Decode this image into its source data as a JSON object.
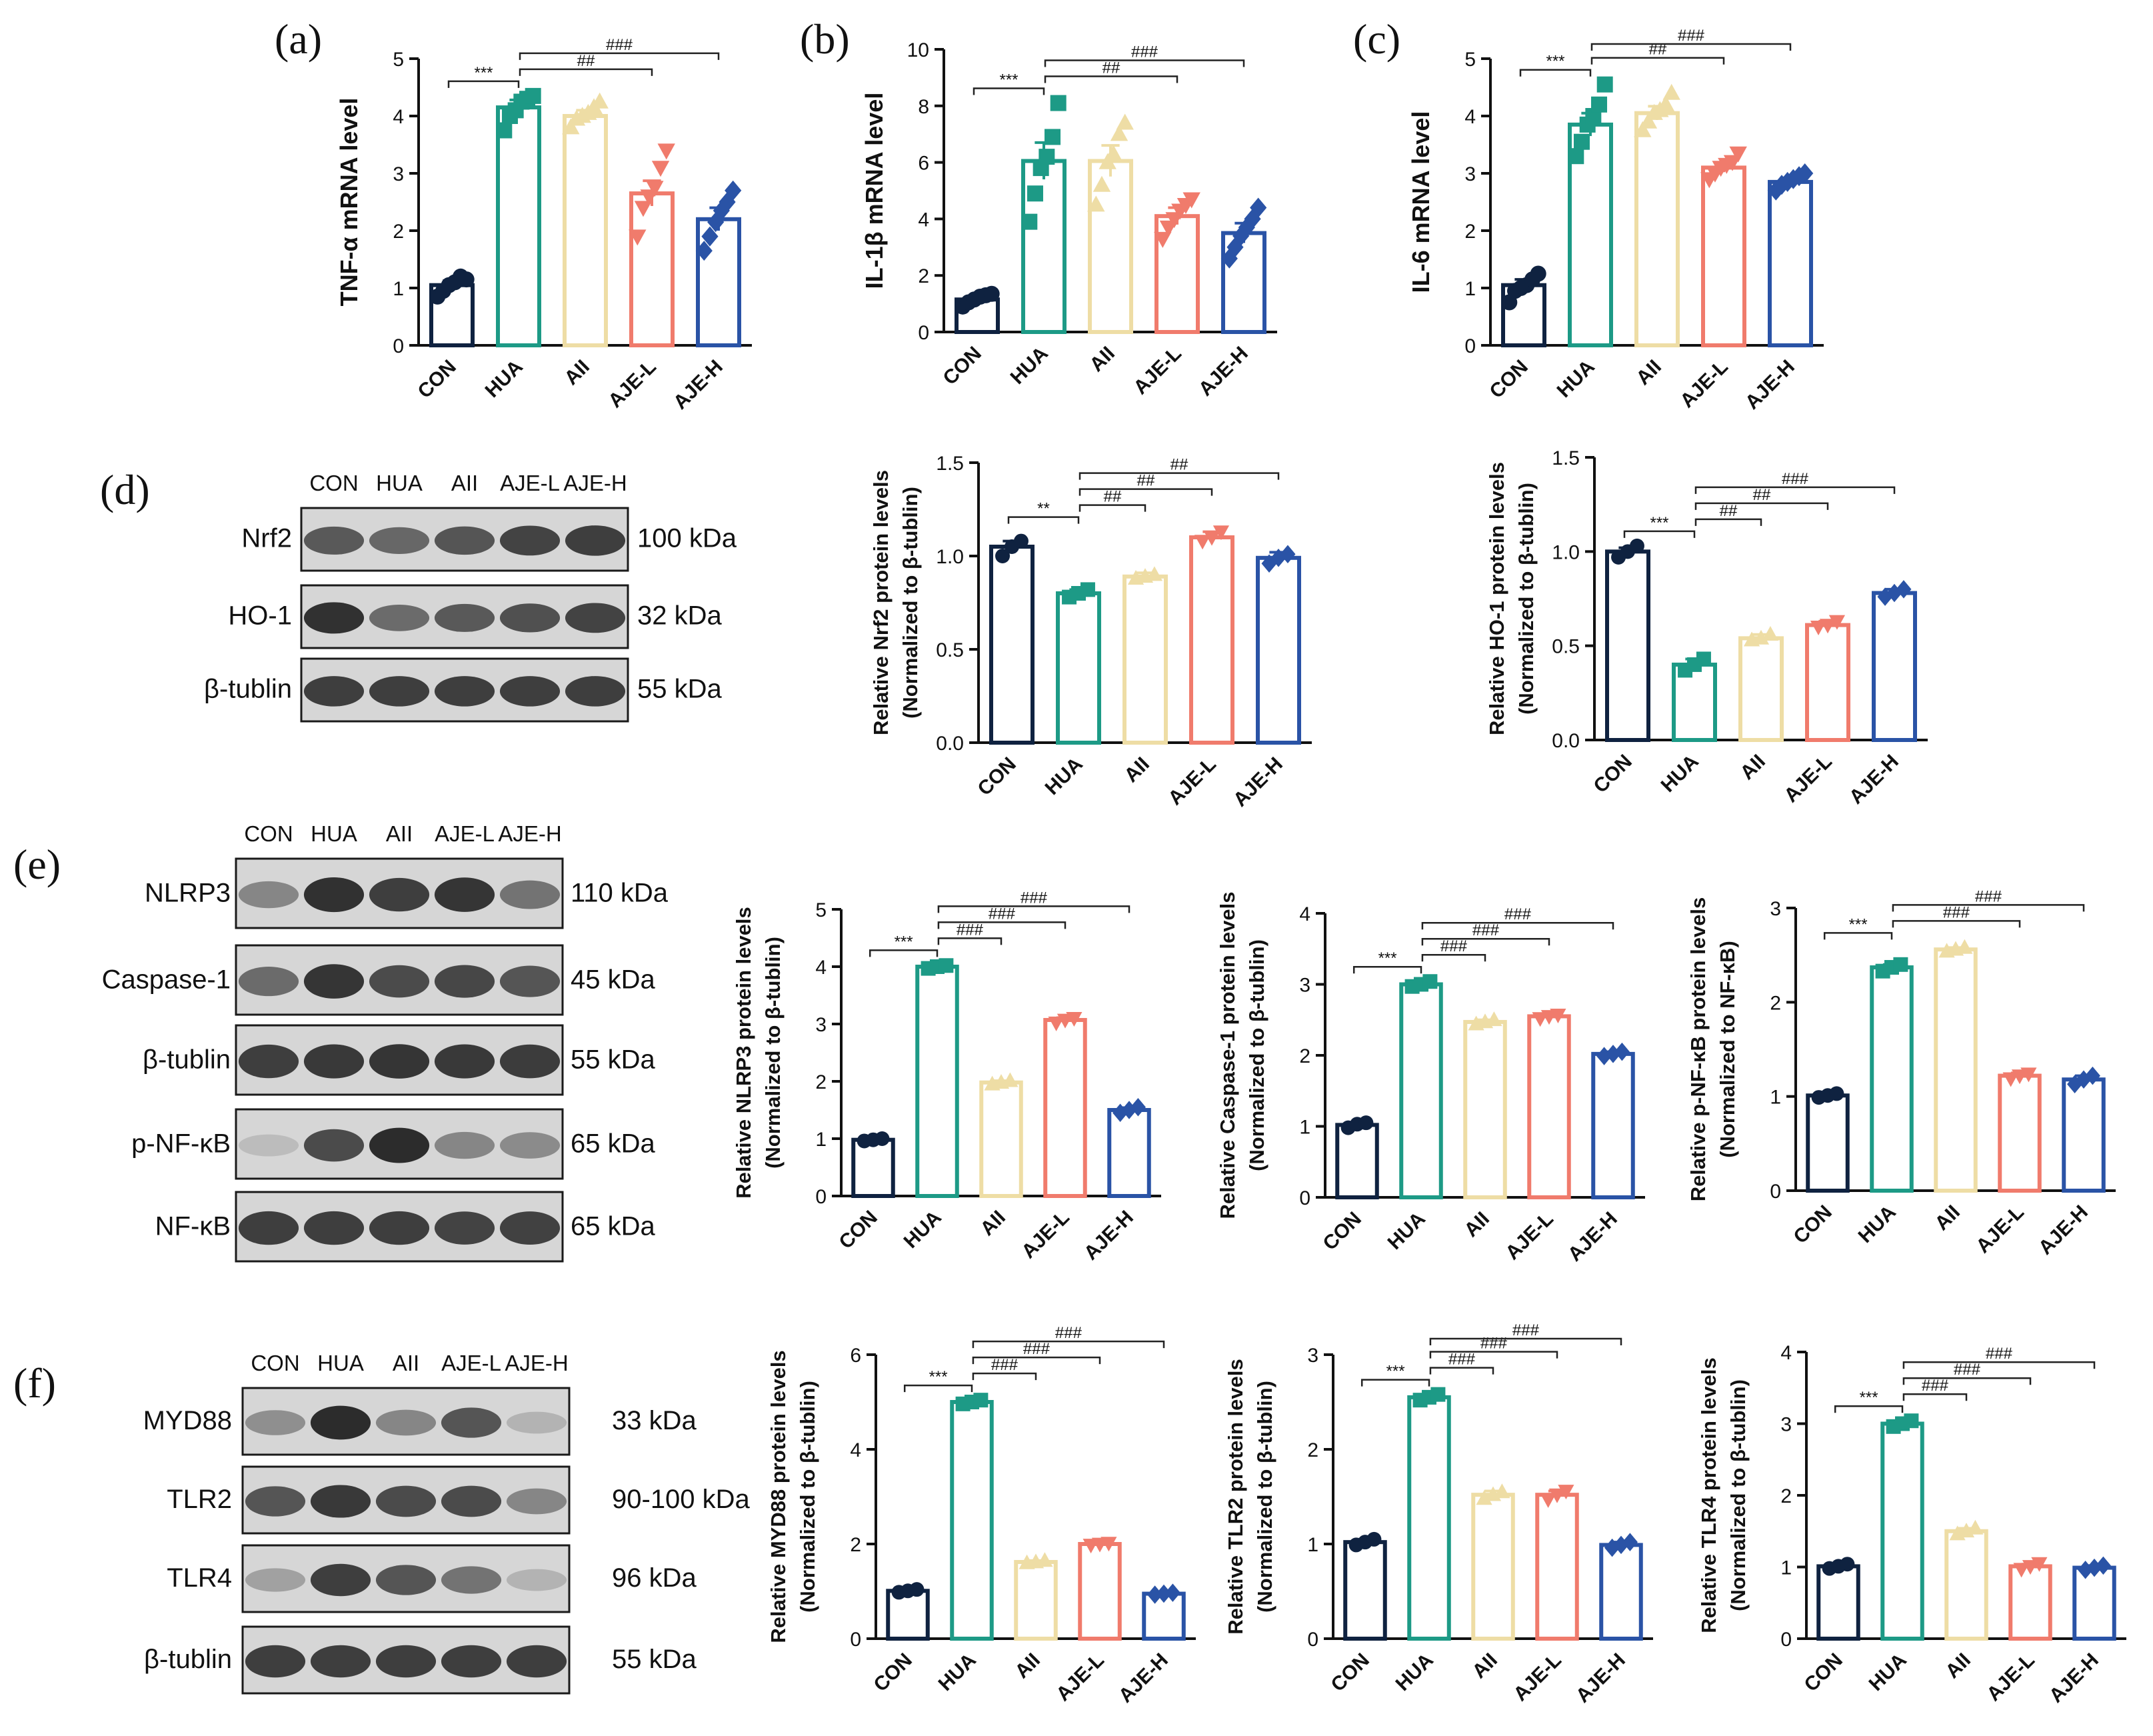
{
  "figure": {
    "groups": [
      "CON",
      "HUA",
      "AII",
      "AJE-L",
      "AJE-H"
    ],
    "colors": {
      "CON": "#0f2240",
      "HUA": "#1d9a86",
      "AII": "#eedda5",
      "AJE-L": "#f07b6c",
      "AJE-H": "#2a53a6"
    },
    "markers": {
      "CON": "circle",
      "HUA": "square",
      "AII": "triangle-up",
      "AJE-L": "triangle-down",
      "AJE-H": "diamond"
    }
  },
  "panels": {
    "a": "(a)",
    "b": "(b)",
    "c": "(c)",
    "d": "(d)",
    "e": "(e)",
    "f": "(f)"
  },
  "western_blots": [
    {
      "panel": "d",
      "lane_labels": [
        "CON",
        "HUA",
        "AII",
        "AJE-L",
        "AJE-H"
      ],
      "rows": [
        {
          "protein": "Nrf2",
          "size": "100 kDa",
          "intensity": [
            0.7,
            0.62,
            0.72,
            0.82,
            0.85
          ]
        },
        {
          "protein": "HO-1",
          "size": "32 kDa",
          "intensity": [
            0.92,
            0.6,
            0.7,
            0.75,
            0.82
          ]
        },
        {
          "protein": "β-tublin",
          "size": "55 kDa",
          "intensity": [
            0.85,
            0.85,
            0.85,
            0.85,
            0.85
          ]
        }
      ]
    },
    {
      "panel": "e",
      "lane_labels": [
        "CON",
        "HUA",
        "AII",
        "AJE-L",
        "AJE-H"
      ],
      "rows": [
        {
          "protein": "NLRP3",
          "size": "110 kDa",
          "intensity": [
            0.45,
            0.92,
            0.85,
            0.9,
            0.55
          ]
        },
        {
          "protein": "Caspase-1",
          "size": "45 kDa",
          "intensity": [
            0.6,
            0.9,
            0.78,
            0.8,
            0.72
          ]
        },
        {
          "protein": "β-tublin",
          "size": "55 kDa",
          "intensity": [
            0.85,
            0.88,
            0.9,
            0.88,
            0.86
          ]
        },
        {
          "protein": "p-NF-κB",
          "size": "65 kDa",
          "intensity": [
            0.15,
            0.78,
            0.95,
            0.45,
            0.42
          ]
        },
        {
          "protein": "NF-κB",
          "size": "65 kDa",
          "intensity": [
            0.85,
            0.85,
            0.85,
            0.82,
            0.83
          ]
        }
      ]
    },
    {
      "panel": "f",
      "lane_labels": [
        "CON",
        "HUA",
        "AII",
        "AJE-L",
        "AJE-H"
      ],
      "rows": [
        {
          "protein": "MYD88",
          "size": "33 kDa",
          "intensity": [
            0.4,
            0.95,
            0.45,
            0.72,
            0.2
          ]
        },
        {
          "protein": "TLR2",
          "size": "90-100 kDa",
          "intensity": [
            0.72,
            0.88,
            0.78,
            0.78,
            0.45
          ]
        },
        {
          "protein": "TLR4",
          "size": "96 kDa",
          "intensity": [
            0.3,
            0.85,
            0.72,
            0.55,
            0.2
          ]
        },
        {
          "protein": "β-tublin",
          "size": "55 kDa",
          "intensity": [
            0.85,
            0.85,
            0.85,
            0.85,
            0.85
          ]
        }
      ]
    }
  ],
  "chart_data": [
    {
      "id": "a",
      "type": "bar",
      "ylabel": [
        "TNF-α mRNA level"
      ],
      "categories": [
        "CON",
        "HUA",
        "AII",
        "AJE-L",
        "AJE-H"
      ],
      "values": [
        1.05,
        4.15,
        4.0,
        2.65,
        2.2
      ],
      "errors": [
        0.08,
        0.13,
        0.1,
        0.22,
        0.2
      ],
      "points": [
        [
          0.85,
          0.95,
          1.05,
          1.1,
          1.2,
          1.15
        ],
        [
          3.75,
          4.0,
          4.1,
          4.25,
          4.3,
          4.35
        ],
        [
          3.8,
          3.95,
          4.0,
          4.05,
          4.15,
          4.25
        ],
        [
          1.9,
          2.4,
          2.6,
          2.75,
          3.1,
          3.4
        ],
        [
          1.65,
          1.9,
          2.15,
          2.35,
          2.5,
          2.7
        ]
      ],
      "ylim": [
        0,
        5
      ],
      "yticks": [
        0,
        1,
        2,
        3,
        4,
        5
      ],
      "brackets": [
        {
          "from": 0,
          "to": 1,
          "label": "***"
        },
        {
          "from": 1,
          "to": 3,
          "label": "##"
        },
        {
          "from": 1,
          "to": 4,
          "label": "###"
        }
      ]
    },
    {
      "id": "b",
      "type": "bar",
      "ylabel": [
        "IL-1β mRNA level"
      ],
      "categories": [
        "CON",
        "HUA",
        "AII",
        "AJE-L",
        "AJE-H"
      ],
      "values": [
        1.15,
        6.05,
        6.05,
        4.1,
        3.5
      ],
      "errors": [
        0.12,
        0.65,
        0.55,
        0.3,
        0.35
      ],
      "points": [
        [
          0.9,
          1.05,
          1.15,
          1.25,
          1.3,
          1.35
        ],
        [
          3.9,
          4.9,
          5.8,
          6.2,
          6.9,
          8.1
        ],
        [
          4.5,
          5.2,
          6.0,
          6.3,
          7.0,
          7.4
        ],
        [
          3.3,
          3.7,
          4.0,
          4.3,
          4.5,
          4.7
        ],
        [
          2.6,
          3.0,
          3.4,
          3.7,
          4.0,
          4.4
        ]
      ],
      "ylim": [
        0,
        10
      ],
      "yticks": [
        0,
        2,
        4,
        6,
        8,
        10
      ],
      "brackets": [
        {
          "from": 0,
          "to": 1,
          "label": "***"
        },
        {
          "from": 1,
          "to": 3,
          "label": "##"
        },
        {
          "from": 1,
          "to": 4,
          "label": "###"
        }
      ]
    },
    {
      "id": "c",
      "type": "bar",
      "ylabel": [
        "IL-6 mRNA level"
      ],
      "categories": [
        "CON",
        "HUA",
        "AII",
        "AJE-L",
        "AJE-H"
      ],
      "values": [
        1.05,
        3.85,
        4.05,
        3.1,
        2.85
      ],
      "errors": [
        0.1,
        0.2,
        0.12,
        0.08,
        0.07
      ],
      "points": [
        [
          0.75,
          0.95,
          1.0,
          1.05,
          1.15,
          1.25
        ],
        [
          3.3,
          3.55,
          3.85,
          4.0,
          4.2,
          4.55
        ],
        [
          3.75,
          3.9,
          4.05,
          4.1,
          4.2,
          4.4
        ],
        [
          2.9,
          3.0,
          3.1,
          3.15,
          3.2,
          3.35
        ],
        [
          2.7,
          2.8,
          2.85,
          2.9,
          2.95,
          3.0
        ]
      ],
      "ylim": [
        0,
        5
      ],
      "yticks": [
        0,
        1,
        2,
        3,
        4,
        5
      ],
      "brackets": [
        {
          "from": 0,
          "to": 1,
          "label": "***"
        },
        {
          "from": 1,
          "to": 3,
          "label": "##"
        },
        {
          "from": 1,
          "to": 4,
          "label": "###"
        }
      ]
    },
    {
      "id": "d1",
      "type": "bar",
      "ylabel": [
        "Relative Nrf2 protein levels",
        "(Normalized to β-tublin)"
      ],
      "categories": [
        "CON",
        "HUA",
        "AII",
        "AJE-L",
        "AJE-H"
      ],
      "values": [
        1.05,
        0.8,
        0.89,
        1.1,
        0.99
      ],
      "errors": [
        0.03,
        0.02,
        0.02,
        0.03,
        0.03
      ],
      "points": [
        [
          1.0,
          1.05,
          1.08
        ],
        [
          0.78,
          0.8,
          0.82
        ],
        [
          0.88,
          0.89,
          0.9
        ],
        [
          1.08,
          1.1,
          1.13
        ],
        [
          0.96,
          0.99,
          1.01
        ]
      ],
      "ylim": [
        0,
        1.5
      ],
      "yticks": [
        0.0,
        0.5,
        1.0,
        1.5
      ],
      "brackets": [
        {
          "from": 0,
          "to": 1,
          "label": "**"
        },
        {
          "from": 1,
          "to": 2,
          "label": "##"
        },
        {
          "from": 1,
          "to": 3,
          "label": "##"
        },
        {
          "from": 1,
          "to": 4,
          "label": "##"
        }
      ]
    },
    {
      "id": "d2",
      "type": "bar",
      "ylabel": [
        "Relative HO-1 protein levels",
        "(Normalized to β-tublin)"
      ],
      "categories": [
        "CON",
        "HUA",
        "AII",
        "AJE-L",
        "AJE-H"
      ],
      "values": [
        1.0,
        0.4,
        0.54,
        0.61,
        0.78
      ],
      "errors": [
        0.02,
        0.03,
        0.02,
        0.02,
        0.02
      ],
      "points": [
        [
          0.97,
          1.0,
          1.03
        ],
        [
          0.37,
          0.4,
          0.43
        ],
        [
          0.53,
          0.54,
          0.56
        ],
        [
          0.6,
          0.61,
          0.63
        ],
        [
          0.76,
          0.78,
          0.8
        ]
      ],
      "ylim": [
        0,
        1.5
      ],
      "yticks": [
        0.0,
        0.5,
        1.0,
        1.5
      ],
      "brackets": [
        {
          "from": 0,
          "to": 1,
          "label": "***"
        },
        {
          "from": 1,
          "to": 2,
          "label": "##"
        },
        {
          "from": 1,
          "to": 3,
          "label": "##"
        },
        {
          "from": 1,
          "to": 4,
          "label": "###"
        }
      ]
    },
    {
      "id": "e1",
      "type": "bar",
      "ylabel": [
        "Relative NLRP3 protein levels",
        "(Normalized to β-tublin)"
      ],
      "categories": [
        "CON",
        "HUA",
        "AII",
        "AJE-L",
        "AJE-H"
      ],
      "values": [
        0.98,
        4.0,
        1.98,
        3.07,
        1.5
      ],
      "errors": [
        0.03,
        0.03,
        0.03,
        0.04,
        0.04
      ],
      "points": [
        [
          0.96,
          0.98,
          1.0
        ],
        [
          3.97,
          4.0,
          4.02
        ],
        [
          1.95,
          1.98,
          2.01
        ],
        [
          3.02,
          3.07,
          3.1
        ],
        [
          1.45,
          1.5,
          1.55
        ]
      ],
      "ylim": [
        0,
        5
      ],
      "yticks": [
        0,
        1,
        2,
        3,
        4,
        5
      ],
      "brackets": [
        {
          "from": 0,
          "to": 1,
          "label": "***"
        },
        {
          "from": 1,
          "to": 2,
          "label": "###"
        },
        {
          "from": 1,
          "to": 3,
          "label": "###"
        },
        {
          "from": 1,
          "to": 4,
          "label": "###"
        }
      ]
    },
    {
      "id": "e2",
      "type": "bar",
      "ylabel": [
        "Relative Caspase-1 protein levels",
        "(Normalized to β-tublin)"
      ],
      "categories": [
        "CON",
        "HUA",
        "AII",
        "AJE-L",
        "AJE-H"
      ],
      "values": [
        1.02,
        3.0,
        2.47,
        2.55,
        2.02
      ],
      "errors": [
        0.03,
        0.03,
        0.03,
        0.03,
        0.03
      ],
      "points": [
        [
          0.98,
          1.03,
          1.05
        ],
        [
          2.97,
          3.0,
          3.04
        ],
        [
          2.44,
          2.47,
          2.5
        ],
        [
          2.52,
          2.55,
          2.57
        ],
        [
          1.99,
          2.02,
          2.05
        ]
      ],
      "ylim": [
        0,
        4
      ],
      "yticks": [
        0,
        1,
        2,
        3,
        4
      ],
      "brackets": [
        {
          "from": 0,
          "to": 1,
          "label": "***"
        },
        {
          "from": 1,
          "to": 2,
          "label": "###"
        },
        {
          "from": 1,
          "to": 3,
          "label": "###"
        },
        {
          "from": 1,
          "to": 4,
          "label": "###"
        }
      ]
    },
    {
      "id": "e3",
      "type": "bar",
      "ylabel": [
        "Relative p-NF-κB protein levels",
        "(Normalized to NF-κB)"
      ],
      "categories": [
        "CON",
        "HUA",
        "AII",
        "AJE-L",
        "AJE-H"
      ],
      "values": [
        1.01,
        2.37,
        2.56,
        1.22,
        1.18
      ],
      "errors": [
        0.02,
        0.03,
        0.02,
        0.03,
        0.04
      ],
      "points": [
        [
          0.99,
          1.01,
          1.03
        ],
        [
          2.33,
          2.37,
          2.4
        ],
        [
          2.54,
          2.56,
          2.58
        ],
        [
          1.19,
          1.22,
          1.24
        ],
        [
          1.13,
          1.18,
          1.22
        ]
      ],
      "ylim": [
        0,
        3
      ],
      "yticks": [
        0,
        1,
        2,
        3
      ],
      "brackets": [
        {
          "from": 0,
          "to": 1,
          "label": "***"
        },
        {
          "from": 1,
          "to": 3,
          "label": "###"
        },
        {
          "from": 1,
          "to": 4,
          "label": "###"
        }
      ]
    },
    {
      "id": "f1",
      "type": "bar",
      "ylabel": [
        "Relative MYD88 protein levels",
        "(Normalized to β-tublin)"
      ],
      "categories": [
        "CON",
        "HUA",
        "AII",
        "AJE-L",
        "AJE-H"
      ],
      "values": [
        1.01,
        5.0,
        1.62,
        2.0,
        0.95
      ],
      "errors": [
        0.03,
        0.04,
        0.03,
        0.03,
        0.03
      ],
      "points": [
        [
          0.98,
          1.01,
          1.04
        ],
        [
          4.96,
          5.0,
          5.04
        ],
        [
          1.6,
          1.62,
          1.65
        ],
        [
          1.98,
          2.0,
          2.02
        ],
        [
          0.93,
          0.95,
          0.97
        ]
      ],
      "ylim": [
        0,
        6
      ],
      "yticks": [
        0,
        2,
        4,
        6
      ],
      "brackets": [
        {
          "from": 0,
          "to": 1,
          "label": "***"
        },
        {
          "from": 1,
          "to": 2,
          "label": "###"
        },
        {
          "from": 1,
          "to": 3,
          "label": "###"
        },
        {
          "from": 1,
          "to": 4,
          "label": "###"
        }
      ]
    },
    {
      "id": "f2",
      "type": "bar",
      "ylabel": [
        "Relative TLR2 protein levels",
        "(Normalized to β-tublin)"
      ],
      "categories": [
        "CON",
        "HUA",
        "AII",
        "AJE-L",
        "AJE-H"
      ],
      "values": [
        1.02,
        2.55,
        1.52,
        1.52,
        0.99
      ],
      "errors": [
        0.03,
        0.03,
        0.04,
        0.04,
        0.03
      ],
      "points": [
        [
          0.99,
          1.02,
          1.05
        ],
        [
          2.52,
          2.55,
          2.58
        ],
        [
          1.48,
          1.52,
          1.55
        ],
        [
          1.47,
          1.52,
          1.56
        ],
        [
          0.96,
          0.99,
          1.02
        ]
      ],
      "ylim": [
        0,
        3
      ],
      "yticks": [
        0,
        1,
        2,
        3
      ],
      "brackets": [
        {
          "from": 0,
          "to": 1,
          "label": "***"
        },
        {
          "from": 1,
          "to": 2,
          "label": "###"
        },
        {
          "from": 1,
          "to": 3,
          "label": "###"
        },
        {
          "from": 1,
          "to": 4,
          "label": "###"
        }
      ]
    },
    {
      "id": "f3",
      "type": "bar",
      "ylabel": [
        "Relative TLR4 protein levels",
        "(Normalized to β-tublin)"
      ],
      "categories": [
        "CON",
        "HUA",
        "AII",
        "AJE-L",
        "AJE-H"
      ],
      "values": [
        1.01,
        3.0,
        1.5,
        1.01,
        0.99
      ],
      "errors": [
        0.03,
        0.04,
        0.04,
        0.03,
        0.03
      ],
      "points": [
        [
          0.98,
          1.01,
          1.04
        ],
        [
          2.96,
          3.0,
          3.04
        ],
        [
          1.46,
          1.5,
          1.54
        ],
        [
          0.97,
          1.01,
          1.05
        ],
        [
          0.96,
          0.99,
          1.02
        ]
      ],
      "ylim": [
        0,
        4
      ],
      "yticks": [
        0,
        1,
        2,
        3,
        4
      ],
      "brackets": [
        {
          "from": 0,
          "to": 1,
          "label": "***"
        },
        {
          "from": 1,
          "to": 2,
          "label": "###"
        },
        {
          "from": 1,
          "to": 3,
          "label": "###"
        },
        {
          "from": 1,
          "to": 4,
          "label": "###"
        }
      ]
    }
  ]
}
